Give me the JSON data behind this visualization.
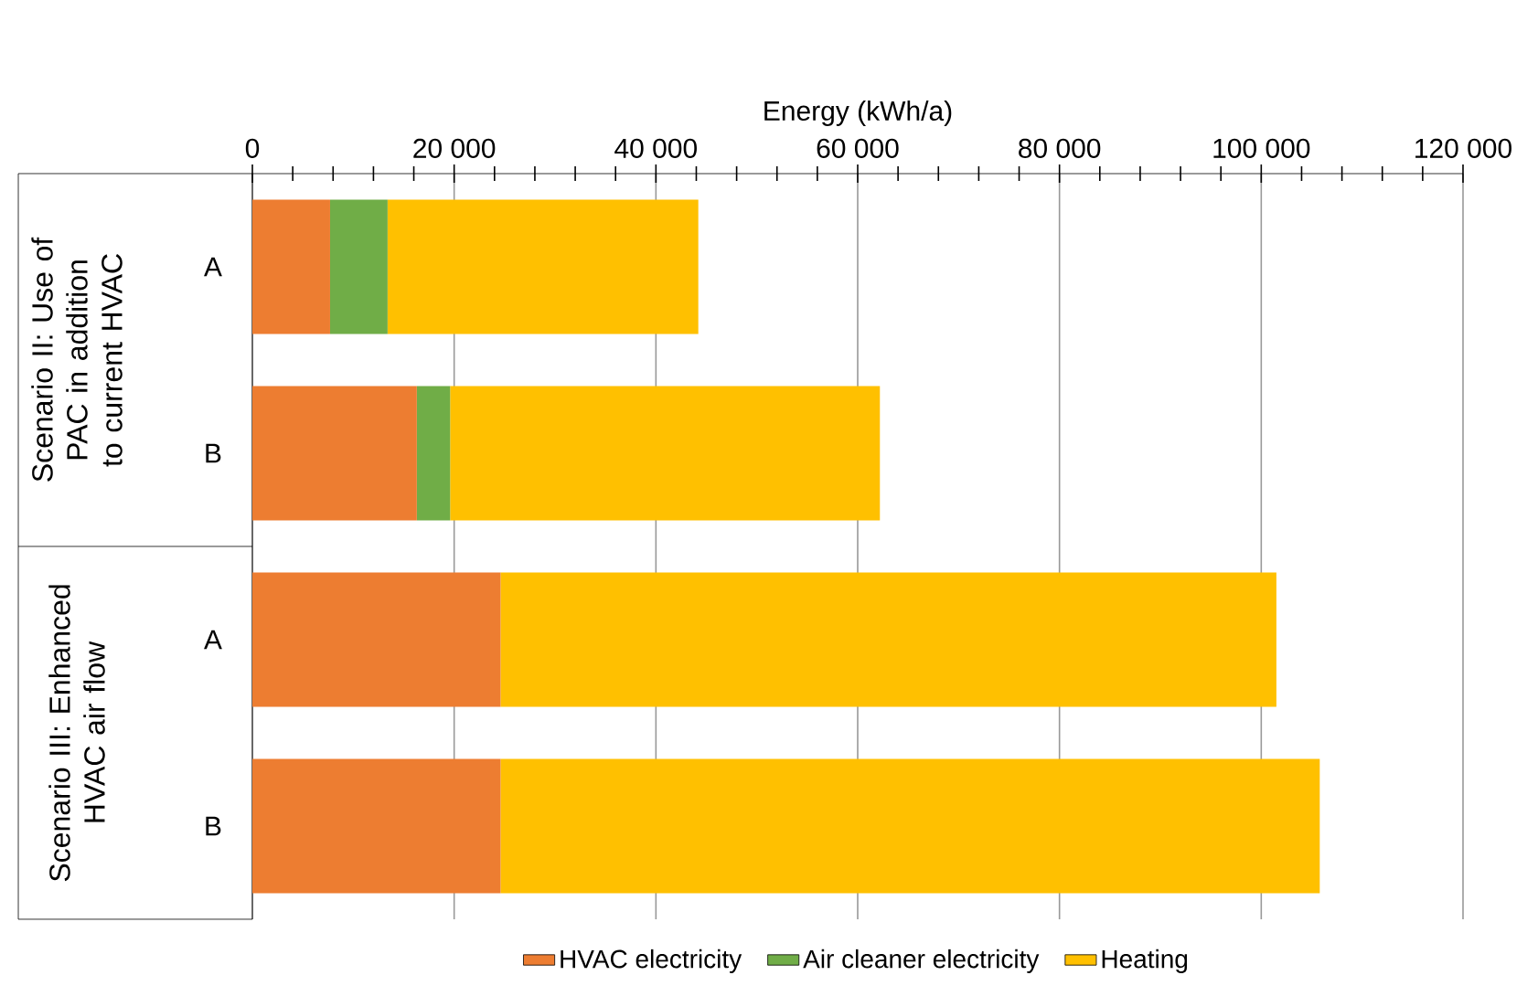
{
  "chart_data": {
    "type": "bar",
    "orientation": "horizontal",
    "stacked": true,
    "xlabel": "Energy  (kWh/a)",
    "categories": [
      "A",
      "B",
      "A",
      "B"
    ],
    "series": [
      {
        "name": "HVAC electricity",
        "color": "#ed7d31",
        "values": [
          7700,
          16300,
          24600,
          24600
        ]
      },
      {
        "name": "Air cleaner electricity",
        "color": "#70ad47",
        "values": [
          5700,
          3300,
          null,
          null
        ]
      },
      {
        "name": "Heating",
        "color": "#ffc000",
        "values": [
          30800,
          42600,
          76900,
          81200
        ]
      }
    ],
    "xlim": [
      0,
      120000
    ],
    "xticks": [
      0,
      {
        "value": 20000,
        "label": "20 000"
      },
      {
        "value": 40000,
        "label": "40 000"
      },
      {
        "value": 60000,
        "label": "60 000"
      },
      {
        "value": 80000,
        "label": "80 000"
      },
      {
        "value": 100000,
        "label": "100 000"
      },
      {
        "value": 120000,
        "label": "120 000"
      }
    ],
    "grid": "x",
    "legend": "bottom",
    "annotations": [
      "Scenario II: Use of PAC in addition to current HVAC",
      "Scenario III: Enhanced HVAC air flow"
    ]
  }
}
